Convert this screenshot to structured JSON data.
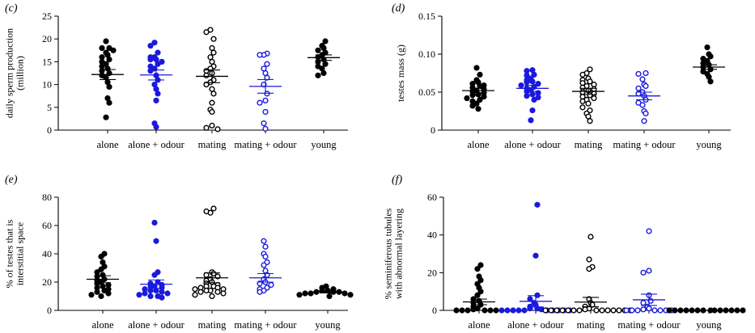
{
  "colors": {
    "black": "#000000",
    "blue": "#1a1adc",
    "white": "#ffffff"
  },
  "chart_data": [
    {
      "id": "c",
      "type": "scatter",
      "panel_label": "(c)",
      "title": "",
      "ylabel": [
        "daily sperm production",
        "(million)"
      ],
      "xlabel": "",
      "ylim": [
        0,
        25
      ],
      "yticks": [
        "0",
        "5",
        "10",
        "15",
        "20",
        "25"
      ],
      "categories": [
        "alone",
        "alone + odour",
        "mating",
        "mating + odour",
        "young"
      ],
      "mean": [
        12.2,
        12.1,
        11.8,
        9.6,
        15.9
      ],
      "sem": [
        1.1,
        1.1,
        1.4,
        1.5,
        0.6
      ],
      "series": [
        {
          "category": "alone",
          "color": "black",
          "filled": true,
          "values": [
            19.5,
            18,
            18,
            17.5,
            17,
            16.5,
            16,
            15.5,
            15,
            14.5,
            14,
            13.5,
            13,
            12.5,
            12,
            11.5,
            10.5,
            9.5,
            7,
            6,
            2.8
          ]
        },
        {
          "category": "alone + odour",
          "color": "blue",
          "filled": true,
          "values": [
            19.2,
            18.5,
            17,
            16,
            16,
            15.5,
            15.5,
            15,
            14.5,
            14,
            13.5,
            13,
            12,
            11,
            10,
            9,
            8,
            6.5,
            1.5,
            0.7
          ]
        },
        {
          "category": "mating",
          "color": "black",
          "filled": false,
          "values": [
            22,
            21.5,
            20,
            18,
            17,
            16,
            15,
            14,
            13.5,
            13,
            12.5,
            12,
            11,
            10.5,
            10,
            9,
            8,
            6,
            4.5,
            4,
            1,
            0.5,
            0.2
          ]
        },
        {
          "category": "mating + odour",
          "color": "blue",
          "filled": false,
          "values": [
            16.8,
            16.5,
            16.5,
            14.5,
            13.5,
            12.5,
            11.5,
            10,
            8,
            6.5,
            6,
            4,
            1.5,
            0.3
          ]
        },
        {
          "category": "young",
          "color": "black",
          "filled": true,
          "values": [
            19.5,
            18.5,
            18,
            17.5,
            17,
            16.5,
            16,
            15.5,
            15,
            14.5,
            14,
            13.5,
            12.5,
            12
          ]
        }
      ]
    },
    {
      "id": "d",
      "type": "scatter",
      "panel_label": "(d)",
      "title": "",
      "ylabel": [
        "testes mass (g)"
      ],
      "xlabel": "",
      "ylim": [
        0,
        0.15
      ],
      "yticks": [
        "0",
        "0.05",
        "0.10",
        "0.15"
      ],
      "categories": [
        "alone",
        "alone + odour",
        "mating",
        "mating + odour",
        "young"
      ],
      "mean": [
        0.052,
        0.055,
        0.051,
        0.045,
        0.083
      ],
      "sem": [
        0.003,
        0.004,
        0.004,
        0.005,
        0.003
      ],
      "series": [
        {
          "category": "alone",
          "color": "black",
          "filled": true,
          "values": [
            0.082,
            0.073,
            0.066,
            0.063,
            0.061,
            0.059,
            0.058,
            0.056,
            0.054,
            0.052,
            0.051,
            0.049,
            0.047,
            0.046,
            0.044,
            0.042,
            0.04,
            0.038,
            0.035,
            0.032,
            0.028
          ]
        },
        {
          "category": "alone + odour",
          "color": "blue",
          "filled": true,
          "values": [
            0.079,
            0.078,
            0.073,
            0.072,
            0.068,
            0.066,
            0.064,
            0.063,
            0.061,
            0.059,
            0.057,
            0.055,
            0.053,
            0.051,
            0.049,
            0.047,
            0.045,
            0.043,
            0.04,
            0.026,
            0.013
          ]
        },
        {
          "category": "mating",
          "color": "black",
          "filled": false,
          "values": [
            0.08,
            0.075,
            0.073,
            0.068,
            0.066,
            0.064,
            0.062,
            0.06,
            0.058,
            0.056,
            0.054,
            0.052,
            0.05,
            0.048,
            0.046,
            0.044,
            0.042,
            0.04,
            0.038,
            0.035,
            0.03,
            0.026,
            0.022,
            0.018,
            0.012
          ]
        },
        {
          "category": "mating + odour",
          "color": "blue",
          "filled": false,
          "values": [
            0.075,
            0.074,
            0.067,
            0.06,
            0.058,
            0.055,
            0.05,
            0.048,
            0.045,
            0.04,
            0.036,
            0.033,
            0.025,
            0.022,
            0.012
          ]
        },
        {
          "category": "young",
          "color": "black",
          "filled": true,
          "values": [
            0.109,
            0.1,
            0.097,
            0.094,
            0.091,
            0.088,
            0.086,
            0.083,
            0.08,
            0.077,
            0.074,
            0.07,
            0.064
          ]
        }
      ]
    },
    {
      "id": "e",
      "type": "scatter",
      "panel_label": "(e)",
      "title": "",
      "ylabel": [
        "% of testes that is",
        "interstitial space"
      ],
      "xlabel": "",
      "ylim": [
        0,
        80
      ],
      "yticks": [
        "0",
        "20",
        "40",
        "60",
        "80"
      ],
      "categories": [
        "alone",
        "alone + odour",
        "mating",
        "mating + odour",
        "young"
      ],
      "mean": [
        22,
        18.5,
        23,
        23,
        13
      ],
      "sem": [
        2.5,
        3,
        3.5,
        3,
        0.7
      ],
      "series": [
        {
          "category": "alone",
          "color": "black",
          "filled": true,
          "values": [
            40,
            38,
            34,
            31,
            29,
            27,
            25,
            24,
            22,
            21,
            20,
            19,
            18,
            17,
            16,
            15,
            14,
            13,
            12,
            11,
            10
          ]
        },
        {
          "category": "alone + odour",
          "color": "blue",
          "filled": true,
          "values": [
            62,
            49,
            27,
            25,
            20,
            19,
            18,
            17,
            17,
            16,
            15,
            14,
            14,
            13,
            12,
            12,
            11,
            10,
            10,
            9
          ]
        },
        {
          "category": "mating",
          "color": "black",
          "filled": false,
          "values": [
            72,
            69,
            70,
            27,
            26,
            25,
            24,
            22,
            21,
            20,
            19,
            18,
            17,
            17,
            16,
            16,
            15,
            15,
            14,
            14,
            13,
            13,
            12,
            11,
            10
          ]
        },
        {
          "category": "mating + odour",
          "color": "blue",
          "filled": false,
          "values": [
            49,
            45,
            40,
            38,
            34,
            32,
            28,
            25,
            22,
            20,
            19,
            18,
            16,
            15,
            14,
            13
          ]
        },
        {
          "category": "young",
          "color": "black",
          "filled": true,
          "values": [
            17,
            16,
            15,
            14,
            14,
            13,
            13,
            13,
            12,
            12,
            12,
            11,
            11,
            10
          ]
        }
      ]
    },
    {
      "id": "f",
      "type": "scatter",
      "panel_label": "(f)",
      "title": "",
      "ylabel": [
        "% seminiferous tubules",
        "with abnormal layering"
      ],
      "xlabel": "",
      "ylim": [
        0,
        60
      ],
      "yticks": [
        "0",
        "20",
        "40",
        "60"
      ],
      "categories": [
        "alone",
        "alone + odour",
        "mating",
        "mating + odour",
        "young"
      ],
      "mean": [
        4.5,
        4.8,
        4.4,
        5.6,
        0
      ],
      "sem": [
        1.5,
        3,
        2.5,
        3,
        0
      ],
      "series": [
        {
          "category": "alone",
          "color": "black",
          "filled": true,
          "values": [
            24,
            22,
            18,
            16,
            14,
            12,
            10,
            8,
            6,
            5,
            4,
            3,
            2,
            1,
            0.5,
            0,
            0,
            0,
            0,
            0,
            0
          ]
        },
        {
          "category": "alone + odour",
          "color": "blue",
          "filled": true,
          "values": [
            56,
            29,
            8,
            6,
            4,
            3,
            2,
            1,
            1,
            0.5,
            0,
            0,
            0,
            0,
            0,
            0,
            0,
            0,
            0,
            0
          ]
        },
        {
          "category": "mating",
          "color": "black",
          "filled": false,
          "values": [
            39,
            27,
            23,
            22,
            6,
            4,
            3,
            2,
            1,
            0.5,
            0,
            0,
            0,
            0,
            0,
            0,
            0,
            0,
            0,
            0,
            0,
            0,
            0,
            0
          ]
        },
        {
          "category": "mating + odour",
          "color": "blue",
          "filled": false,
          "values": [
            42,
            21,
            20,
            8,
            5,
            4,
            2,
            1,
            0.5,
            0,
            0,
            0,
            0,
            0,
            0,
            0
          ]
        },
        {
          "category": "young",
          "color": "black",
          "filled": true,
          "values": [
            0,
            0,
            0,
            0,
            0,
            0,
            0,
            0,
            0,
            0,
            0,
            0,
            0,
            0
          ]
        }
      ]
    }
  ]
}
